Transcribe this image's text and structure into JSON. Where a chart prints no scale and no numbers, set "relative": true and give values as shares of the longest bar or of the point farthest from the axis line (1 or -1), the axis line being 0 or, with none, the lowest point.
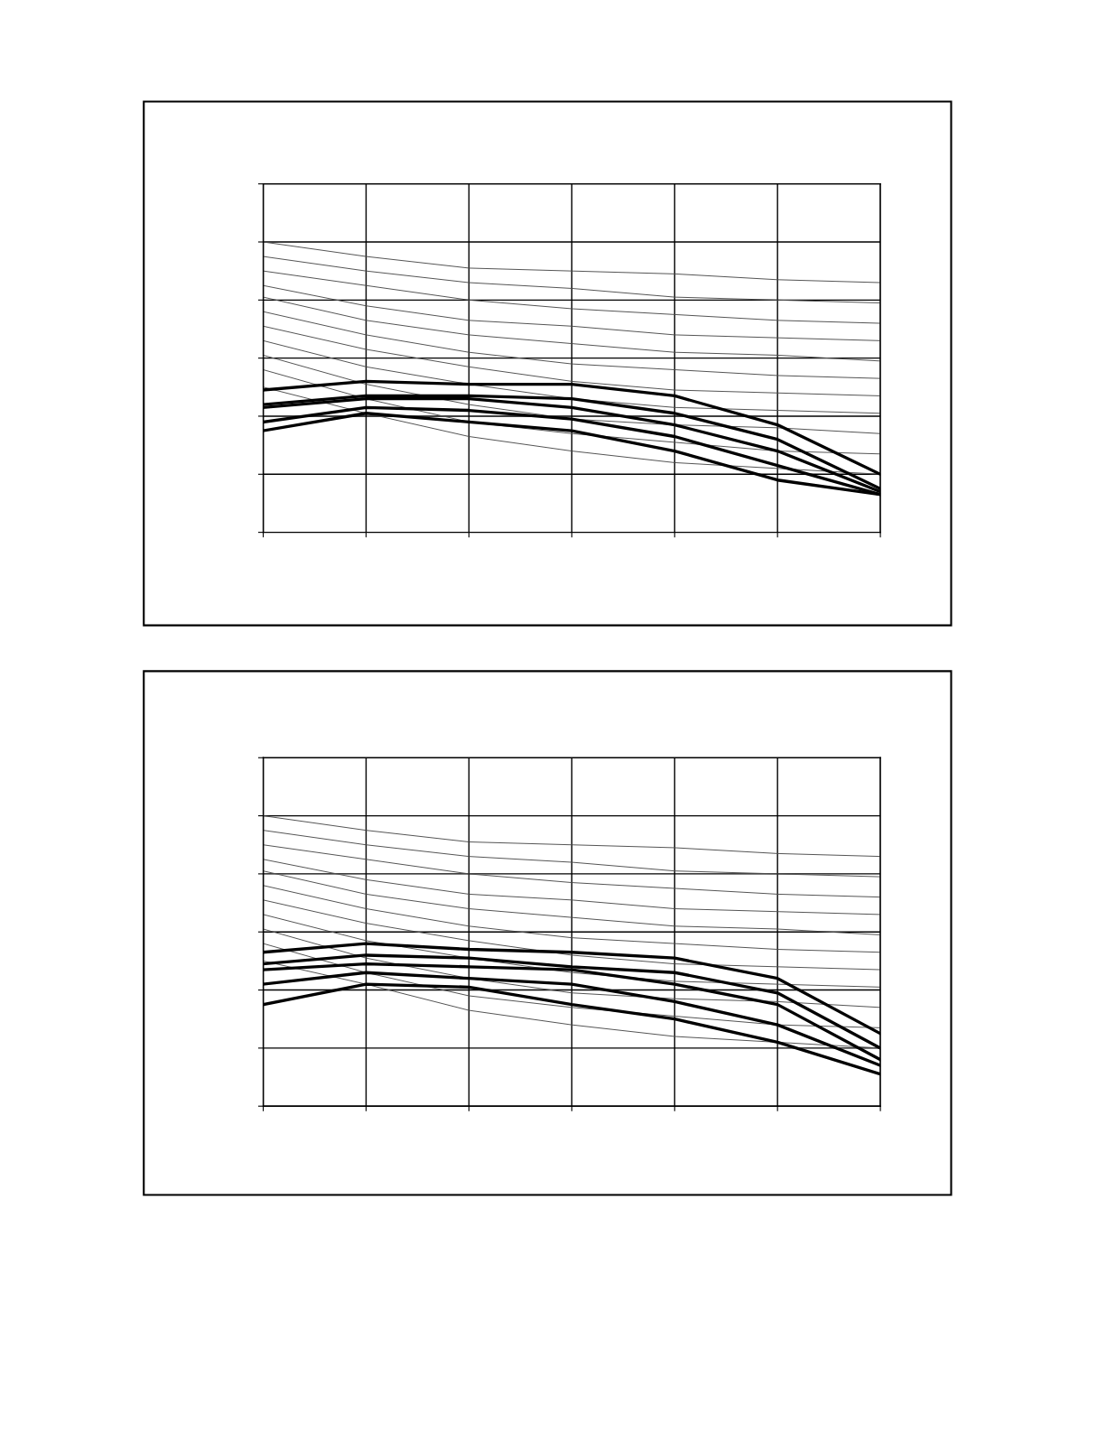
{
  "chart_data": [
    {
      "type": "line",
      "relative": true,
      "grid": true,
      "categories": [
        null,
        null,
        null,
        null,
        null,
        null,
        null
      ],
      "series": [
        {
          "color": "#505050",
          "values": [
            1.0,
            0.95,
            0.91,
            0.9,
            0.89,
            0.87,
            0.86
          ]
        },
        {
          "color": "#505050",
          "values": [
            0.95,
            0.9,
            0.86,
            0.84,
            0.81,
            0.8,
            0.79
          ]
        },
        {
          "color": "#505050",
          "values": [
            0.9,
            0.85,
            0.8,
            0.77,
            0.75,
            0.73,
            0.72
          ]
        },
        {
          "color": "#505050",
          "values": [
            0.85,
            0.78,
            0.73,
            0.71,
            0.68,
            0.67,
            0.66
          ]
        },
        {
          "color": "#505050",
          "values": [
            0.81,
            0.73,
            0.68,
            0.65,
            0.62,
            0.61,
            0.59
          ]
        },
        {
          "color": "#505050",
          "values": [
            0.76,
            0.68,
            0.62,
            0.58,
            0.56,
            0.54,
            0.53
          ]
        },
        {
          "color": "#505050",
          "values": [
            0.71,
            0.63,
            0.57,
            0.52,
            0.49,
            0.48,
            0.47
          ]
        },
        {
          "color": "#505050",
          "values": [
            0.66,
            0.57,
            0.51,
            0.46,
            0.43,
            0.42,
            0.41
          ]
        },
        {
          "color": "#505050",
          "values": [
            0.61,
            0.51,
            0.44,
            0.39,
            0.37,
            0.36,
            0.34
          ]
        },
        {
          "color": "#505050",
          "values": [
            0.56,
            0.46,
            0.38,
            0.34,
            0.31,
            0.28,
            0.27
          ]
        },
        {
          "color": "#505050",
          "values": [
            0.5,
            0.41,
            0.33,
            0.28,
            0.24,
            0.22,
            0.2
          ]
        },
        {
          "color": "#000000",
          "values": [
            0.49,
            0.52,
            0.51,
            0.51,
            0.47,
            0.37,
            0.2
          ]
        },
        {
          "color": "#000000",
          "values": [
            0.44,
            0.47,
            0.47,
            0.46,
            0.41,
            0.32,
            0.15
          ]
        },
        {
          "color": "#000000",
          "values": [
            0.43,
            0.46,
            0.46,
            0.43,
            0.37,
            0.28,
            0.14
          ]
        },
        {
          "color": "#000000",
          "values": [
            0.38,
            0.43,
            0.42,
            0.39,
            0.33,
            0.23,
            0.13
          ]
        },
        {
          "color": "#000000",
          "values": [
            0.35,
            0.41,
            0.38,
            0.35,
            0.28,
            0.18,
            0.13
          ]
        }
      ]
    },
    {
      "type": "line",
      "relative": true,
      "grid": true,
      "categories": [
        null,
        null,
        null,
        null,
        null,
        null,
        null
      ],
      "series": [
        {
          "color": "#505050",
          "values": [
            1.0,
            0.95,
            0.91,
            0.9,
            0.89,
            0.87,
            0.86
          ]
        },
        {
          "color": "#505050",
          "values": [
            0.95,
            0.9,
            0.86,
            0.84,
            0.81,
            0.8,
            0.79
          ]
        },
        {
          "color": "#505050",
          "values": [
            0.9,
            0.85,
            0.8,
            0.77,
            0.75,
            0.73,
            0.72
          ]
        },
        {
          "color": "#505050",
          "values": [
            0.85,
            0.78,
            0.73,
            0.71,
            0.68,
            0.67,
            0.66
          ]
        },
        {
          "color": "#505050",
          "values": [
            0.81,
            0.73,
            0.68,
            0.65,
            0.62,
            0.61,
            0.59
          ]
        },
        {
          "color": "#505050",
          "values": [
            0.76,
            0.68,
            0.62,
            0.58,
            0.56,
            0.54,
            0.53
          ]
        },
        {
          "color": "#505050",
          "values": [
            0.71,
            0.63,
            0.57,
            0.52,
            0.49,
            0.48,
            0.47
          ]
        },
        {
          "color": "#505050",
          "values": [
            0.66,
            0.57,
            0.51,
            0.46,
            0.43,
            0.42,
            0.41
          ]
        },
        {
          "color": "#505050",
          "values": [
            0.61,
            0.51,
            0.44,
            0.39,
            0.37,
            0.36,
            0.34
          ]
        },
        {
          "color": "#505050",
          "values": [
            0.56,
            0.46,
            0.38,
            0.34,
            0.31,
            0.28,
            0.27
          ]
        },
        {
          "color": "#505050",
          "values": [
            0.5,
            0.42,
            0.33,
            0.28,
            0.24,
            0.22,
            0.2
          ]
        },
        {
          "color": "#000000",
          "values": [
            0.53,
            0.56,
            0.54,
            0.53,
            0.51,
            0.44,
            0.25
          ]
        },
        {
          "color": "#000000",
          "values": [
            0.49,
            0.52,
            0.51,
            0.48,
            0.46,
            0.39,
            0.2
          ]
        },
        {
          "color": "#000000",
          "values": [
            0.47,
            0.49,
            0.48,
            0.47,
            0.42,
            0.35,
            0.16
          ]
        },
        {
          "color": "#000000",
          "values": [
            0.42,
            0.46,
            0.44,
            0.42,
            0.36,
            0.28,
            0.14
          ]
        },
        {
          "color": "#000000",
          "values": [
            0.35,
            0.42,
            0.41,
            0.35,
            0.3,
            0.22,
            0.11
          ]
        }
      ]
    }
  ]
}
